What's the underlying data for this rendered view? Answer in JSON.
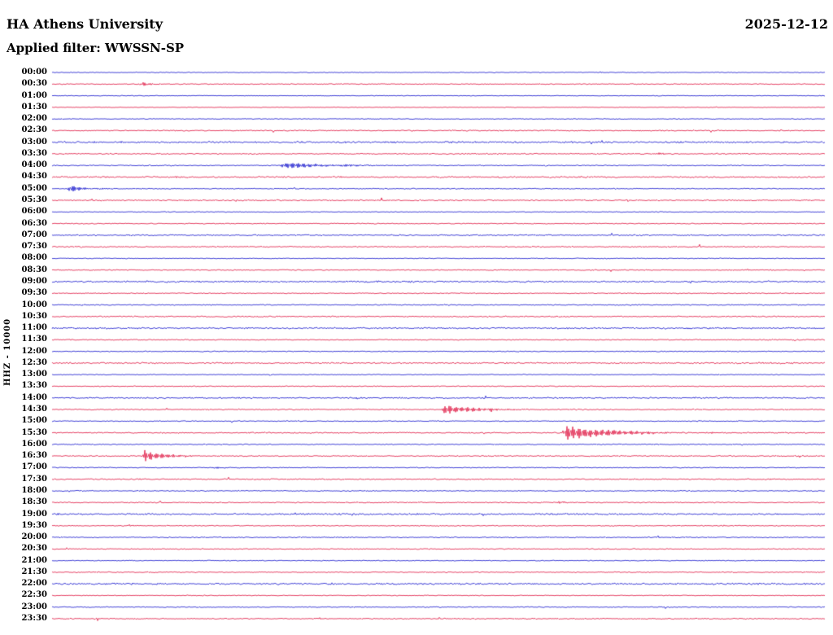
{
  "chart_data": {
    "type": "line",
    "subtype": "helicorder-seismogram",
    "title": "HA Athens University",
    "date": "2025-12-12",
    "filter": "Applied filter: WWSSN-SP",
    "ylabel": "HHZ - 10000",
    "row_interval_minutes": 30,
    "grid": false,
    "legend": false,
    "trace_color_cycle": [
      "#0000c8",
      "#dc0032"
    ],
    "row_labels": [
      "00:00",
      "00:30",
      "01:00",
      "01:30",
      "02:00",
      "02:30",
      "03:00",
      "03:30",
      "04:00",
      "04:30",
      "05:00",
      "05:30",
      "06:00",
      "06:30",
      "07:00",
      "07:30",
      "08:00",
      "08:30",
      "09:00",
      "09:30",
      "10:00",
      "10:30",
      "11:00",
      "11:30",
      "12:00",
      "12:30",
      "13:00",
      "13:30",
      "14:00",
      "14:30",
      "15:00",
      "15:30",
      "16:00",
      "16:30",
      "17:00",
      "17:30",
      "18:00",
      "18:30",
      "19:00",
      "19:30",
      "20:00",
      "20:30",
      "21:00",
      "21:30",
      "22:00",
      "22:30",
      "23:00",
      "23:30"
    ],
    "row_noise": [
      0.6,
      0.7,
      0.55,
      0.5,
      0.6,
      0.8,
      1.2,
      0.8,
      0.7,
      1.1,
      0.7,
      0.9,
      0.6,
      0.7,
      0.9,
      0.8,
      0.6,
      0.7,
      1.2,
      0.7,
      0.8,
      0.9,
      1.15,
      0.8,
      0.7,
      1.1,
      0.6,
      0.7,
      1.0,
      0.8,
      0.7,
      0.9,
      0.7,
      0.8,
      0.7,
      0.9,
      0.7,
      0.8,
      1.15,
      0.7,
      0.8,
      0.7,
      0.6,
      0.7,
      1.2,
      0.6,
      0.7,
      0.8
    ],
    "events": [
      {
        "row": 1,
        "row_label": "00:30",
        "x_frac": 0.115,
        "amplitude": 4.0,
        "coda": 10,
        "approx_time": "00:33"
      },
      {
        "row": 7,
        "row_label": "03:30",
        "x_frac": 0.785,
        "amplitude": 2.2,
        "coda": 8,
        "approx_time": "03:53"
      },
      {
        "row": 7,
        "row_label": "03:30",
        "x_frac": 0.86,
        "amplitude": 1.4,
        "coda": 6,
        "approx_time": "03:56"
      },
      {
        "row": 8,
        "row_label": "04:00",
        "x_frac": 0.297,
        "amplitude": 4.5,
        "coda": 45,
        "approx_time": "04:09"
      },
      {
        "row": 8,
        "row_label": "04:00",
        "x_frac": 0.375,
        "amplitude": 1.6,
        "coda": 18,
        "approx_time": "04:11"
      },
      {
        "row": 10,
        "row_label": "05:00",
        "x_frac": 0.022,
        "amplitude": 4.5,
        "coda": 20,
        "approx_time": "05:01"
      },
      {
        "row": 29,
        "row_label": "14:30",
        "x_frac": 0.507,
        "amplitude": 6.5,
        "coda": 40,
        "approx_time": "14:45"
      },
      {
        "row": 31,
        "row_label": "15:30",
        "x_frac": 0.663,
        "amplitude": 10.0,
        "coda": 55,
        "approx_time": "15:50"
      },
      {
        "row": 33,
        "row_label": "16:30",
        "x_frac": 0.12,
        "amplitude": 7.5,
        "coda": 25,
        "approx_time": "16:34"
      },
      {
        "row": 34,
        "row_label": "17:00",
        "x_frac": 0.209,
        "amplitude": 2.2,
        "coda": 10,
        "approx_time": "17:06"
      },
      {
        "row": 37,
        "row_label": "18:30",
        "x_frac": 0.655,
        "amplitude": 1.8,
        "coda": 12,
        "approx_time": "18:50"
      },
      {
        "row": 39,
        "row_label": "19:30",
        "x_frac": 0.1,
        "amplitude": 1.4,
        "coda": 8,
        "approx_time": "19:33"
      }
    ]
  }
}
